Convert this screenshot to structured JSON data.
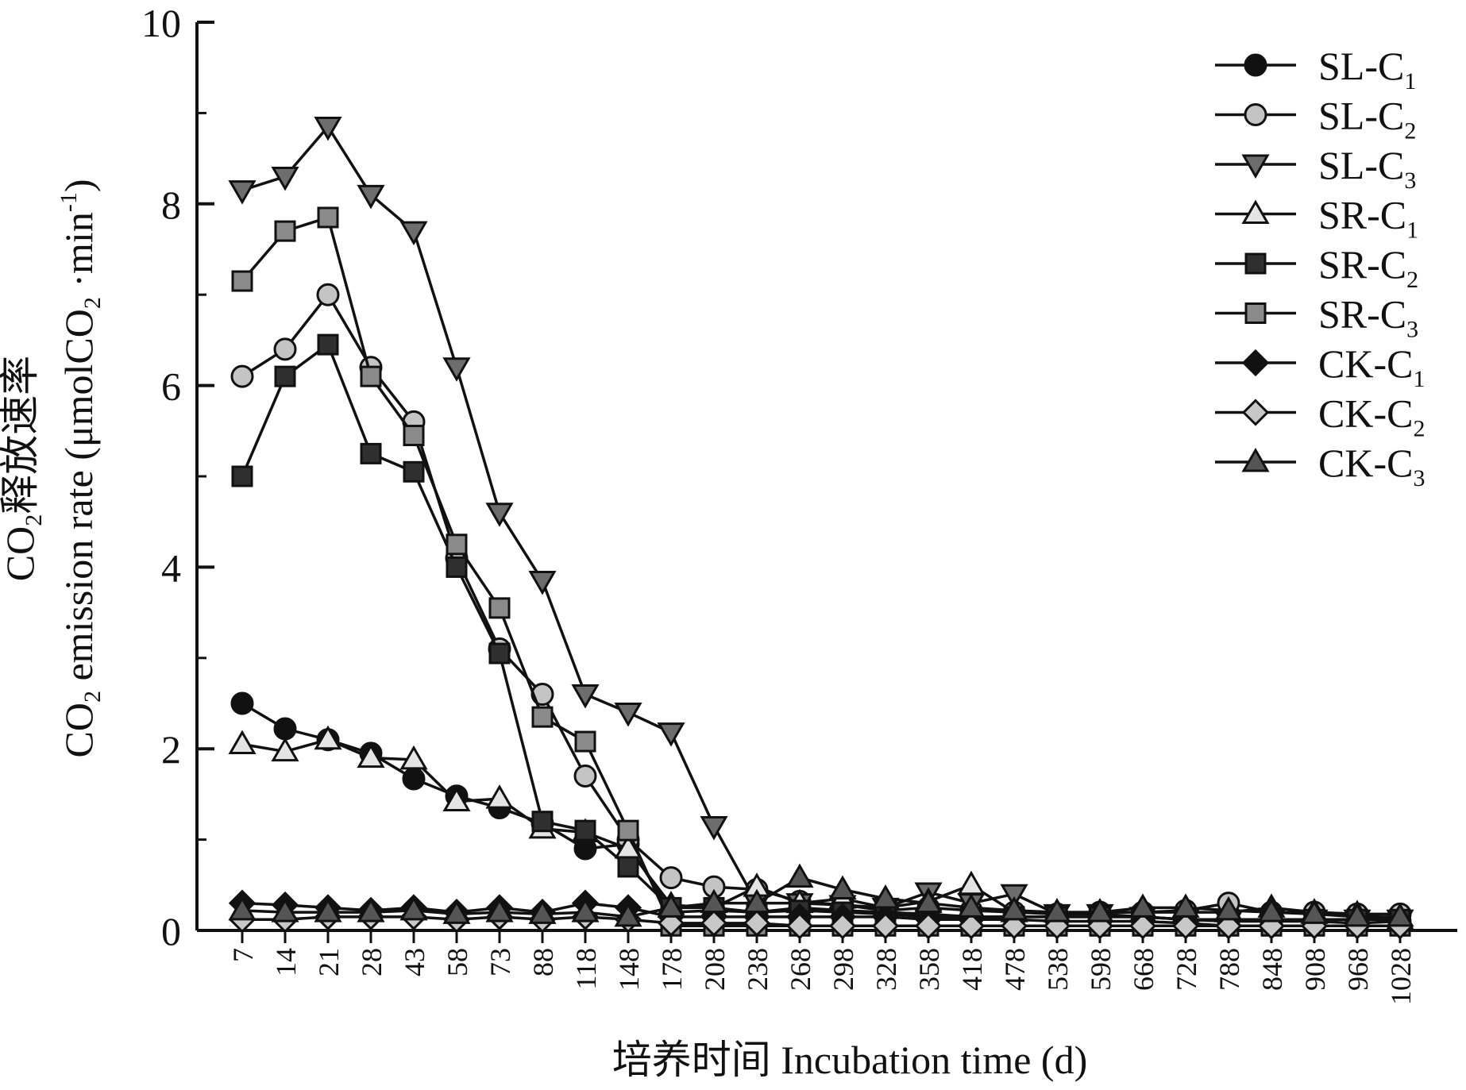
{
  "chart_data": {
    "type": "line",
    "xlabel": "培养时间 Incubation time (d)",
    "ylabel_cn": "CO2释放速率",
    "ylabel_en": "CO2 emission rate (μmolCO2 ·min-1)",
    "ylim": [
      0,
      10
    ],
    "yticks": [
      "0",
      "2",
      "4",
      "6",
      "8",
      "10"
    ],
    "ytick_values": [
      0,
      2,
      4,
      6,
      8,
      10
    ],
    "categories": [
      "7",
      "14",
      "21",
      "28",
      "43",
      "58",
      "73",
      "88",
      "118",
      "148",
      "178",
      "208",
      "238",
      "268",
      "298",
      "328",
      "358",
      "418",
      "478",
      "538",
      "598",
      "668",
      "728",
      "788",
      "848",
      "908",
      "968",
      "1028"
    ],
    "legend_position": "top-right",
    "series": [
      {
        "name": "SL-C1",
        "base": "SL-C",
        "sub": "1",
        "marker": "circle",
        "fill": "#111111",
        "values": [
          2.5,
          2.22,
          2.1,
          1.95,
          1.67,
          1.48,
          1.35,
          1.18,
          0.9,
          0.95,
          0.2,
          0.22,
          0.2,
          0.25,
          0.22,
          0.2,
          0.18,
          0.15,
          0.15,
          0.15,
          0.15,
          0.15,
          0.12,
          0.1,
          0.1,
          0.1,
          0.08,
          0.1
        ]
      },
      {
        "name": "SL-C2",
        "base": "SL-C",
        "sub": "2",
        "marker": "circle",
        "fill": "#c4c4c4",
        "values": [
          6.1,
          6.4,
          7.0,
          6.2,
          5.6,
          4.1,
          3.1,
          2.6,
          1.7,
          1.0,
          0.58,
          0.48,
          0.45,
          0.32,
          0.28,
          0.22,
          0.25,
          0.22,
          0.2,
          0.18,
          0.2,
          0.2,
          0.22,
          0.3,
          0.2,
          0.2,
          0.18,
          0.18
        ]
      },
      {
        "name": "SL-C3",
        "base": "SL-C",
        "sub": "3",
        "marker": "tri-down",
        "fill": "#6d6d6d",
        "values": [
          8.15,
          8.3,
          8.85,
          8.1,
          7.7,
          6.2,
          4.6,
          3.85,
          2.6,
          2.4,
          2.18,
          1.15,
          0.3,
          0.3,
          0.28,
          0.25,
          0.42,
          0.3,
          0.4,
          0.18,
          0.18,
          0.15,
          0.12,
          0.1,
          0.12,
          0.12,
          0.12,
          0.12
        ]
      },
      {
        "name": "SR-C1",
        "base": "SR-C",
        "sub": "1",
        "marker": "tri-up",
        "fill": "#e4e4e4",
        "values": [
          2.05,
          1.97,
          2.1,
          1.9,
          1.88,
          1.42,
          1.45,
          1.12,
          1.08,
          0.9,
          0.28,
          0.25,
          0.48,
          0.3,
          0.35,
          0.25,
          0.32,
          0.5,
          0.2,
          0.2,
          0.2,
          0.2,
          0.2,
          0.2,
          0.25,
          0.2,
          0.18,
          0.12
        ]
      },
      {
        "name": "SR-C2",
        "base": "SR-C",
        "sub": "2",
        "marker": "square",
        "fill": "#2f2f2f",
        "values": [
          5.0,
          6.1,
          6.45,
          5.25,
          5.05,
          4.0,
          3.05,
          1.2,
          1.1,
          0.7,
          0.25,
          0.25,
          0.2,
          0.22,
          0.2,
          0.18,
          0.15,
          0.15,
          0.15,
          0.15,
          0.15,
          0.15,
          0.12,
          0.12,
          0.12,
          0.12,
          0.12,
          0.12
        ]
      },
      {
        "name": "SR-C3",
        "base": "SR-C",
        "sub": "3",
        "marker": "square",
        "fill": "#8a8a8a",
        "values": [
          7.15,
          7.7,
          7.85,
          6.1,
          5.45,
          4.25,
          3.55,
          2.35,
          2.08,
          1.1,
          0.05,
          0.05,
          0.05,
          0.05,
          0.05,
          0.05,
          0.05,
          0.05,
          0.05,
          0.05,
          0.05,
          0.05,
          0.05,
          0.05,
          0.05,
          0.05,
          0.05,
          0.05
        ]
      },
      {
        "name": "CK-C1",
        "base": "CK-C",
        "sub": "1",
        "marker": "diamond",
        "fill": "#111111",
        "values": [
          0.3,
          0.28,
          0.25,
          0.22,
          0.25,
          0.2,
          0.25,
          0.2,
          0.3,
          0.25,
          0.15,
          0.15,
          0.15,
          0.15,
          0.15,
          0.15,
          0.12,
          0.12,
          0.12,
          0.1,
          0.1,
          0.1,
          0.08,
          0.05,
          0.05,
          0.05,
          0.05,
          0.05
        ]
      },
      {
        "name": "CK-C2",
        "base": "CK-C",
        "sub": "2",
        "marker": "diamond",
        "fill": "#c8c8c8",
        "values": [
          0.12,
          0.12,
          0.15,
          0.15,
          0.15,
          0.12,
          0.15,
          0.12,
          0.15,
          0.12,
          0.08,
          0.08,
          0.08,
          0.05,
          0.05,
          0.05,
          0.05,
          0.05,
          0.05,
          0.05,
          0.05,
          0.05,
          0.05,
          0.05,
          0.05,
          0.05,
          0.05,
          0.05
        ]
      },
      {
        "name": "CK-C3",
        "base": "CK-C",
        "sub": "3",
        "marker": "tri-up",
        "fill": "#555555",
        "values": [
          0.22,
          0.2,
          0.2,
          0.2,
          0.22,
          0.18,
          0.2,
          0.18,
          0.2,
          0.15,
          0.25,
          0.3,
          0.3,
          0.58,
          0.45,
          0.35,
          0.3,
          0.25,
          0.22,
          0.2,
          0.2,
          0.25,
          0.25,
          0.22,
          0.2,
          0.18,
          0.15,
          0.15
        ]
      }
    ]
  }
}
